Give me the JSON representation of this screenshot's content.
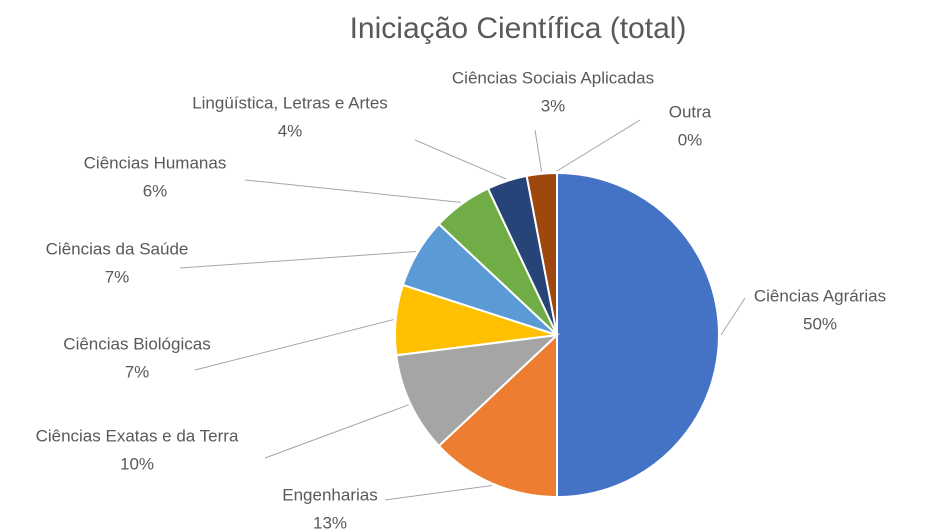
{
  "chart_data": {
    "type": "pie",
    "title": "Iniciação Científica (total)",
    "categories": [
      "Ciências Agrárias",
      "Engenharias",
      "Ciências Exatas e da Terra",
      "Ciências Biológicas",
      "Ciências da Saúde",
      "Ciências Humanas",
      "Lingüística, Letras e Artes",
      "Ciências Sociais Aplicadas",
      "Outra"
    ],
    "values": [
      50,
      13,
      10,
      7,
      7,
      6,
      4,
      3,
      0
    ],
    "value_labels": [
      "50%",
      "13%",
      "10%",
      "7%",
      "7%",
      "6%",
      "4%",
      "3%",
      "0%"
    ],
    "colors": [
      "#4472c4",
      "#ed7d31",
      "#a5a5a5",
      "#ffc000",
      "#5b9bd5",
      "#70ad47",
      "#264478",
      "#9e480e",
      "#636363"
    ]
  }
}
